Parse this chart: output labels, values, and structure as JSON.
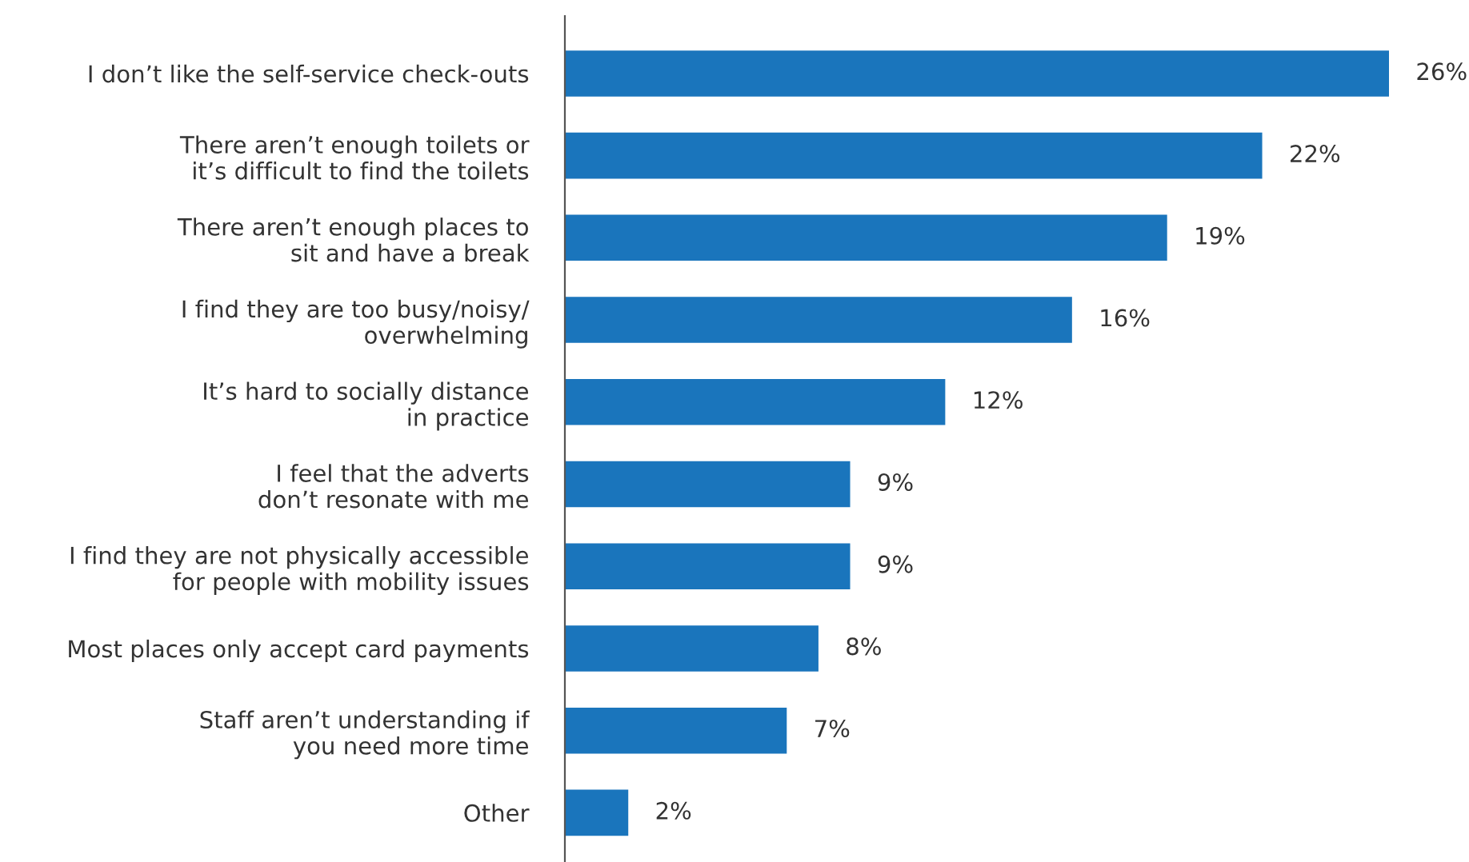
{
  "chart_data": {
    "type": "bar",
    "orientation": "horizontal",
    "color": "#1a75bc",
    "categories": [
      "I don’t like the self-service check-outs",
      "There aren’t enough toilets or\nit’s difficult to find the toilets",
      "There aren’t enough places to\nsit and have a break",
      "I find they are too busy/noisy/\noverwhelming",
      "It’s hard to socially distance\nin practice",
      "I feel that the adverts\ndon’t resonate with me",
      "I find they are not physically accessible\nfor people with mobility issues",
      "Most places only accept card payments",
      "Staff aren’t understanding if\nyou need more time",
      "Other"
    ],
    "values": [
      26,
      22,
      19,
      16,
      12,
      9,
      9,
      8,
      7,
      2
    ],
    "value_labels": [
      "26%",
      "22%",
      "19%",
      "16%",
      "12%",
      "9%",
      "9%",
      "8%",
      "7%",
      "2%"
    ],
    "grid": false,
    "legend": false
  }
}
